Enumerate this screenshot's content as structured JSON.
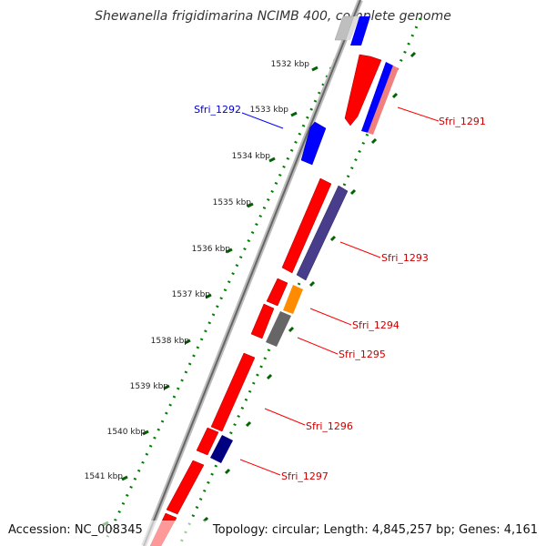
{
  "title": "Shewanella frigidimarina NCIMB 400, complete genome",
  "footer": {
    "accession": "Accession: NC_008345",
    "topology": "Topology: circular; Length: 4,845,257 bp; Genes: 4,161"
  },
  "ruler": {
    "unit": "kbp",
    "ticks": [
      "1532 kbp",
      "1533 kbp",
      "1534 kbp",
      "1535 kbp",
      "1536 kbp",
      "1537 kbp",
      "1538 kbp",
      "1539 kbp",
      "1540 kbp",
      "1541 kbp"
    ]
  },
  "colors": {
    "red": "#ff0000",
    "blue": "#0000ff",
    "navy": "#000080",
    "slate": "#483d8b",
    "orange": "#ff8c00",
    "gray": "#666666",
    "pink": "#f08080",
    "backbone": "#808080",
    "dots": "#008000"
  },
  "genes": [
    {
      "id": "Sfri_1291",
      "color": "#ff0000"
    },
    {
      "id": "Sfri_1292",
      "color": "#0000ff"
    },
    {
      "id": "Sfri_1293",
      "color": "#ff0000"
    },
    {
      "id": "Sfri_1294",
      "color": "#ff0000"
    },
    {
      "id": "Sfri_1295",
      "color": "#ff0000"
    },
    {
      "id": "Sfri_1296",
      "color": "#ff0000"
    },
    {
      "id": "Sfri_1297",
      "color": "#ff0000"
    }
  ]
}
